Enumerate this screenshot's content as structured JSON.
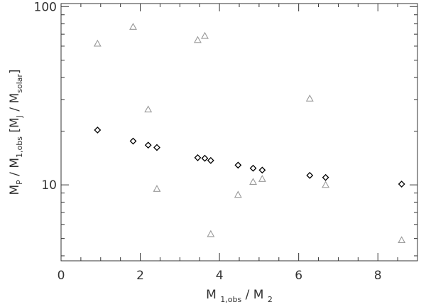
{
  "chart_data": {
    "type": "scatter",
    "x_axis": {
      "label_main": "M",
      "label_sub1": "1,obs",
      "label_div": " / M",
      "label_sub2": "2",
      "range": [
        0,
        9
      ],
      "ticks": [
        0,
        2,
        4,
        6,
        8
      ],
      "tick_labels": [
        "0",
        "2",
        "4",
        "6",
        "8"
      ],
      "minor_step": 0.5,
      "scale": "linear"
    },
    "y_axis": {
      "label_parts": [
        {
          "text": "M",
          "sub": "P"
        },
        {
          "text": " / M",
          "sub": "1,obs"
        },
        {
          "text": " [M",
          "sub": "J"
        },
        {
          "text": " / M",
          "sub": "solar"
        },
        {
          "text": "]",
          "sub": ""
        }
      ],
      "range": [
        3.75,
        104
      ],
      "scale": "log",
      "ticks": [
        10,
        100
      ],
      "tick_labels": [
        "10",
        "100"
      ],
      "minor_ticks": [
        4,
        5,
        6,
        7,
        8,
        9,
        20,
        30,
        40,
        50,
        60,
        70,
        80,
        90
      ]
    },
    "grid": false,
    "legend": "none",
    "series": [
      {
        "marker": "diamond",
        "color": "#000000",
        "x": [
          0.92,
          1.82,
          2.2,
          2.42,
          3.45,
          3.63,
          3.78,
          4.47,
          4.85,
          5.08,
          6.28,
          6.68,
          8.6
        ],
        "y": [
          20.3,
          17.6,
          16.7,
          16.2,
          14.2,
          14.1,
          13.7,
          12.9,
          12.4,
          12.1,
          11.3,
          11.0,
          10.1
        ]
      },
      {
        "marker": "triangle",
        "color": "#999999",
        "x": [
          0.92,
          1.82,
          2.2,
          2.42,
          3.45,
          3.63,
          3.78,
          4.47,
          4.85,
          5.08,
          6.28,
          6.68,
          8.6
        ],
        "y": [
          62,
          77,
          26.5,
          9.5,
          65,
          68.5,
          5.3,
          8.8,
          10.4,
          10.8,
          30.5,
          10.0,
          4.9
        ]
      }
    ]
  }
}
